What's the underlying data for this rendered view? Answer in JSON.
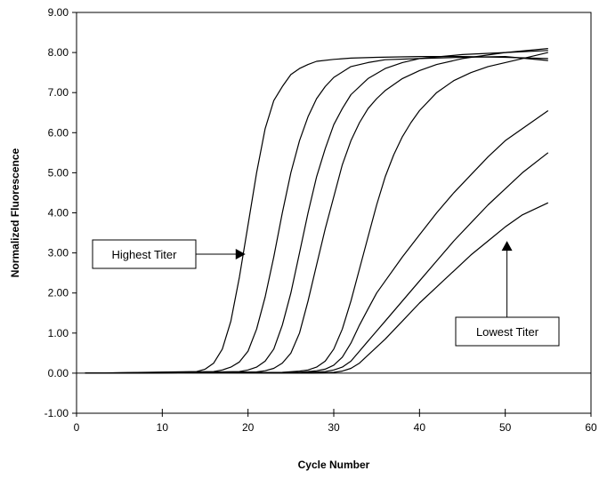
{
  "chart_data": {
    "type": "line",
    "title": "",
    "xlabel": "Cycle Number",
    "ylabel": "Normalized Fluorescence",
    "xlim": [
      0,
      60
    ],
    "ylim": [
      -1,
      9
    ],
    "xticks": [
      0,
      10,
      20,
      30,
      40,
      50,
      60
    ],
    "xtick_labels": [
      "0",
      "10",
      "20",
      "30",
      "40",
      "50",
      "60"
    ],
    "yticks": [
      -1,
      0,
      1,
      2,
      3,
      4,
      5,
      6,
      7,
      8,
      9
    ],
    "ytick_labels": [
      "-1.00",
      "0.00",
      "1.00",
      "2.00",
      "3.00",
      "4.00",
      "5.00",
      "6.00",
      "7.00",
      "8.00",
      "9.00"
    ],
    "grid": false,
    "legend": "none",
    "series": [
      {
        "x": [
          1,
          8,
          14,
          15,
          16,
          17,
          18,
          19,
          20,
          21,
          22,
          23,
          24,
          25,
          26,
          27,
          28,
          30,
          32,
          35,
          40,
          45,
          50,
          55
        ],
        "y": [
          0.0,
          0.02,
          0.04,
          0.1,
          0.25,
          0.6,
          1.3,
          2.4,
          3.7,
          5.0,
          6.1,
          6.8,
          7.15,
          7.45,
          7.6,
          7.7,
          7.78,
          7.83,
          7.86,
          7.88,
          7.9,
          7.9,
          7.88,
          7.85
        ]
      },
      {
        "x": [
          1,
          10,
          16,
          17,
          18,
          19,
          20,
          21,
          22,
          23,
          24,
          25,
          26,
          27,
          28,
          29,
          30,
          32,
          34,
          36,
          40,
          45,
          50,
          55
        ],
        "y": [
          0.0,
          0.02,
          0.04,
          0.08,
          0.15,
          0.28,
          0.55,
          1.1,
          1.9,
          2.9,
          4.0,
          5.0,
          5.8,
          6.4,
          6.85,
          7.15,
          7.38,
          7.65,
          7.75,
          7.82,
          7.85,
          7.88,
          7.9,
          7.8
        ]
      },
      {
        "x": [
          1,
          12,
          19,
          20,
          21,
          22,
          23,
          24,
          25,
          26,
          27,
          28,
          29,
          30,
          31,
          32,
          34,
          36,
          38,
          40,
          45,
          50,
          55
        ],
        "y": [
          0.0,
          0.01,
          0.04,
          0.08,
          0.15,
          0.3,
          0.6,
          1.2,
          2.0,
          3.0,
          4.0,
          4.9,
          5.6,
          6.2,
          6.6,
          6.95,
          7.35,
          7.6,
          7.75,
          7.85,
          7.95,
          8.0,
          8.05
        ]
      },
      {
        "x": [
          1,
          12,
          21,
          22,
          23,
          24,
          25,
          26,
          27,
          28,
          29,
          30,
          31,
          32,
          33,
          34,
          35,
          36,
          38,
          40,
          42,
          45,
          50,
          55
        ],
        "y": [
          0.0,
          0.01,
          0.03,
          0.06,
          0.12,
          0.25,
          0.5,
          1.0,
          1.8,
          2.7,
          3.6,
          4.4,
          5.2,
          5.8,
          6.25,
          6.6,
          6.85,
          7.05,
          7.35,
          7.55,
          7.7,
          7.85,
          8.0,
          8.1
        ]
      },
      {
        "x": [
          1,
          12,
          24,
          26,
          27,
          28,
          29,
          30,
          31,
          32,
          33,
          34,
          35,
          36,
          37,
          38,
          39,
          40,
          42,
          44,
          46,
          48,
          50,
          52,
          55
        ],
        "y": [
          0.0,
          0.01,
          0.02,
          0.05,
          0.08,
          0.15,
          0.3,
          0.6,
          1.1,
          1.8,
          2.6,
          3.4,
          4.2,
          4.9,
          5.45,
          5.9,
          6.25,
          6.55,
          7.0,
          7.3,
          7.5,
          7.65,
          7.75,
          7.85,
          8.0
        ]
      },
      {
        "x": [
          1,
          12,
          26,
          28,
          29,
          30,
          31,
          32,
          33,
          34,
          35,
          36,
          38,
          40,
          42,
          44,
          46,
          48,
          50,
          52,
          55
        ],
        "y": [
          0.0,
          0.01,
          0.02,
          0.06,
          0.1,
          0.2,
          0.4,
          0.75,
          1.2,
          1.6,
          2.0,
          2.3,
          2.9,
          3.45,
          4.0,
          4.5,
          4.95,
          5.4,
          5.8,
          6.1,
          6.55
        ]
      },
      {
        "x": [
          1,
          12,
          27,
          29,
          30,
          31,
          32,
          33,
          34,
          35,
          36,
          38,
          40,
          42,
          44,
          46,
          48,
          50,
          52,
          55
        ],
        "y": [
          0.0,
          0.01,
          0.02,
          0.04,
          0.08,
          0.15,
          0.3,
          0.55,
          0.8,
          1.05,
          1.3,
          1.8,
          2.3,
          2.8,
          3.3,
          3.75,
          4.2,
          4.6,
          5.0,
          5.5
        ]
      },
      {
        "x": [
          1,
          12,
          28,
          30,
          31,
          32,
          33,
          34,
          35,
          36,
          38,
          40,
          42,
          44,
          46,
          48,
          50,
          52,
          55
        ],
        "y": [
          0.0,
          0.01,
          0.0,
          0.02,
          0.05,
          0.12,
          0.25,
          0.45,
          0.65,
          0.85,
          1.3,
          1.75,
          2.15,
          2.55,
          2.95,
          3.3,
          3.65,
          3.95,
          4.25
        ]
      }
    ],
    "annotations": [
      {
        "text": "Highest Titer",
        "arrow_to": [
          19.7,
          3.0
        ]
      },
      {
        "text": "Lowest Titer",
        "arrow_to": [
          50.2,
          3.3
        ]
      }
    ]
  }
}
